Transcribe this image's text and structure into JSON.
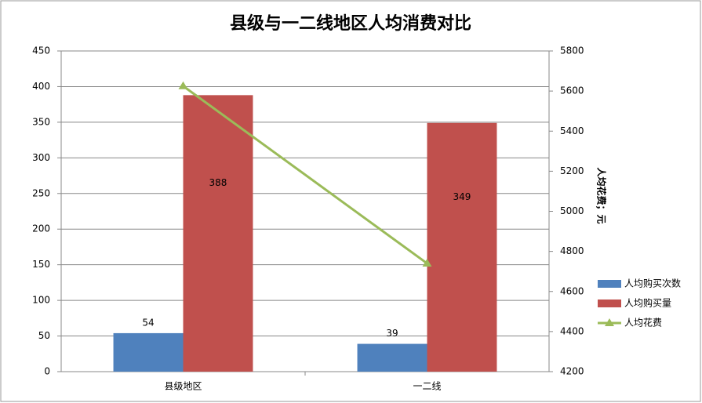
{
  "chart_data": {
    "type": "bar",
    "title": "县级与一二线地区人均消费对比",
    "categories": [
      "县级地区",
      "一二线"
    ],
    "series": [
      {
        "name": "人均购买次数",
        "color": "#4f81bd",
        "values": [
          54,
          39
        ]
      },
      {
        "name": "人均购买量",
        "color": "#c0504d",
        "values": [
          388,
          349
        ]
      },
      {
        "name": "人均花费",
        "color": "#9bbb59",
        "type": "line",
        "axis": "y2",
        "values": [
          5625,
          4740
        ]
      }
    ],
    "ylim": [
      0,
      450
    ],
    "yticks": [
      0,
      50,
      100,
      150,
      200,
      250,
      300,
      350,
      400,
      450
    ],
    "y2lim": [
      4200,
      5800
    ],
    "y2ticks": [
      4200,
      4400,
      4600,
      4800,
      5000,
      5200,
      5400,
      5600,
      5800
    ],
    "y2label": "人均花费；元",
    "grid": true,
    "legend": "right"
  }
}
